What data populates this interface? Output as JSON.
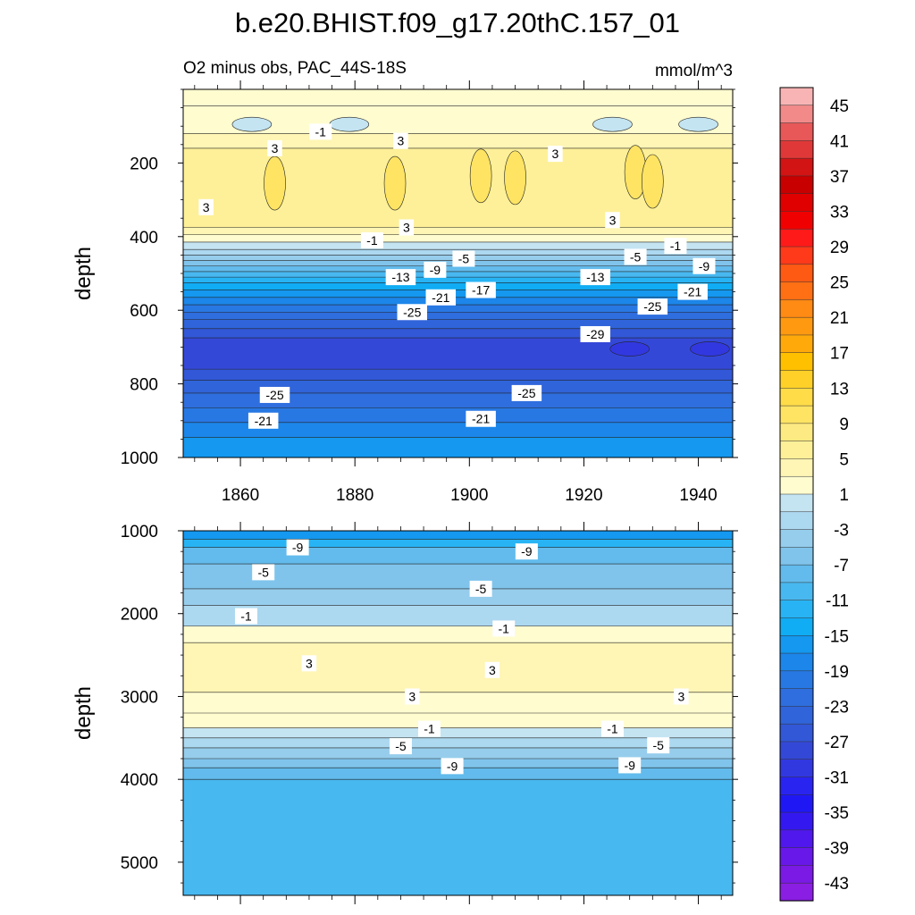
{
  "chart_data": {
    "type": "heatmap",
    "title": "b.e20.BHIST.f09_g17.20thC.157_01",
    "subtitle_left": "O2 minus obs, PAC_44S-18S",
    "subtitle_right": "mmol/m^3",
    "x_label": "",
    "x_ticks": [
      "1860",
      "1880",
      "1900",
      "1920",
      "1940"
    ],
    "x_tick_values": [
      1860,
      1880,
      1900,
      1920,
      1940
    ],
    "xlim": [
      1850,
      1946
    ],
    "panels": [
      {
        "name": "upper",
        "ylabel": "depth",
        "ylim": [
          0,
          1000
        ],
        "y_ticks": [
          "200",
          "400",
          "600",
          "800",
          "1000"
        ],
        "y_tick_values": [
          200,
          400,
          600,
          800,
          1000
        ],
        "bands": [
          {
            "top": 0,
            "bottom": 45,
            "value": 1
          },
          {
            "top": 45,
            "bottom": 120,
            "value": 1
          },
          {
            "top": 120,
            "bottom": 160,
            "value": 3
          },
          {
            "top": 160,
            "bottom": 375,
            "value": 5
          },
          {
            "top": 375,
            "bottom": 395,
            "value": 3
          },
          {
            "top": 395,
            "bottom": 415,
            "value": 1
          },
          {
            "top": 415,
            "bottom": 435,
            "value": -1
          },
          {
            "top": 435,
            "bottom": 450,
            "value": -3
          },
          {
            "top": 450,
            "bottom": 465,
            "value": -5
          },
          {
            "top": 465,
            "bottom": 480,
            "value": -7
          },
          {
            "top": 480,
            "bottom": 495,
            "value": -9
          },
          {
            "top": 495,
            "bottom": 510,
            "value": -11
          },
          {
            "top": 510,
            "bottom": 525,
            "value": -13
          },
          {
            "top": 525,
            "bottom": 545,
            "value": -15
          },
          {
            "top": 545,
            "bottom": 565,
            "value": -17
          },
          {
            "top": 565,
            "bottom": 585,
            "value": -19
          },
          {
            "top": 585,
            "bottom": 605,
            "value": -21
          },
          {
            "top": 605,
            "bottom": 625,
            "value": -23
          },
          {
            "top": 625,
            "bottom": 650,
            "value": -25
          },
          {
            "top": 650,
            "bottom": 675,
            "value": -27
          },
          {
            "top": 675,
            "bottom": 760,
            "value": -29
          },
          {
            "top": 760,
            "bottom": 790,
            "value": -27
          },
          {
            "top": 790,
            "bottom": 825,
            "value": -25
          },
          {
            "top": 825,
            "bottom": 865,
            "value": -23
          },
          {
            "top": 865,
            "bottom": 905,
            "value": -21
          },
          {
            "top": 905,
            "bottom": 945,
            "value": -19
          },
          {
            "top": 945,
            "bottom": 1000,
            "value": -17
          }
        ],
        "blobs": [
          {
            "year": 1862,
            "depth": 95,
            "value": -1
          },
          {
            "year": 1879,
            "depth": 95,
            "value": -1
          },
          {
            "year": 1925,
            "depth": 95,
            "value": -1
          },
          {
            "year": 1940,
            "depth": 95,
            "value": -1
          },
          {
            "year": 1866,
            "depth": 255,
            "value": 9
          },
          {
            "year": 1887,
            "depth": 255,
            "value": 9
          },
          {
            "year": 1902,
            "depth": 235,
            "value": 9
          },
          {
            "year": 1908,
            "depth": 240,
            "value": 9
          },
          {
            "year": 1929,
            "depth": 225,
            "value": 9
          },
          {
            "year": 1932,
            "depth": 250,
            "value": 9
          },
          {
            "year": 1928,
            "depth": 705,
            "value": -31
          },
          {
            "year": 1942,
            "depth": 705,
            "value": -31
          }
        ],
        "contour_labels": [
          {
            "text": "-1",
            "year": 1874,
            "depth": 115
          },
          {
            "text": "3",
            "year": 1888,
            "depth": 140
          },
          {
            "text": "3",
            "year": 1866,
            "depth": 160
          },
          {
            "text": "3",
            "year": 1915,
            "depth": 175
          },
          {
            "text": "3",
            "year": 1854,
            "depth": 320
          },
          {
            "text": "3",
            "year": 1889,
            "depth": 375
          },
          {
            "text": "3",
            "year": 1925,
            "depth": 355
          },
          {
            "text": "-1",
            "year": 1883,
            "depth": 410
          },
          {
            "text": "-1",
            "year": 1936,
            "depth": 425
          },
          {
            "text": "-5",
            "year": 1899,
            "depth": 460
          },
          {
            "text": "-5",
            "year": 1929,
            "depth": 455
          },
          {
            "text": "-9",
            "year": 1894,
            "depth": 490
          },
          {
            "text": "-9",
            "year": 1941,
            "depth": 480
          },
          {
            "text": "-13",
            "year": 1888,
            "depth": 510
          },
          {
            "text": "-13",
            "year": 1922,
            "depth": 510
          },
          {
            "text": "-17",
            "year": 1902,
            "depth": 545
          },
          {
            "text": "-21",
            "year": 1895,
            "depth": 565
          },
          {
            "text": "-21",
            "year": 1939,
            "depth": 550
          },
          {
            "text": "-25",
            "year": 1890,
            "depth": 605
          },
          {
            "text": "-25",
            "year": 1932,
            "depth": 590
          },
          {
            "text": "-29",
            "year": 1922,
            "depth": 665
          },
          {
            "text": "-25",
            "year": 1866,
            "depth": 830
          },
          {
            "text": "-25",
            "year": 1910,
            "depth": 825
          },
          {
            "text": "-21",
            "year": 1864,
            "depth": 900
          },
          {
            "text": "-21",
            "year": 1902,
            "depth": 895
          }
        ]
      },
      {
        "name": "lower",
        "ylabel": "depth",
        "ylim": [
          1000,
          5400
        ],
        "y_ticks": [
          "1000",
          "2000",
          "3000",
          "4000",
          "5000"
        ],
        "y_tick_values": [
          1000,
          2000,
          3000,
          4000,
          5000
        ],
        "bands": [
          {
            "top": 1000,
            "bottom": 1100,
            "value": -17
          },
          {
            "top": 1100,
            "bottom": 1200,
            "value": -13
          },
          {
            "top": 1200,
            "bottom": 1400,
            "value": -9
          },
          {
            "top": 1400,
            "bottom": 1700,
            "value": -7
          },
          {
            "top": 1700,
            "bottom": 1900,
            "value": -5
          },
          {
            "top": 1900,
            "bottom": 2150,
            "value": -3
          },
          {
            "top": 2150,
            "bottom": 2350,
            "value": 1
          },
          {
            "top": 2350,
            "bottom": 2950,
            "value": 3
          },
          {
            "top": 2950,
            "bottom": 3200,
            "value": 1
          },
          {
            "top": 3200,
            "bottom": 3380,
            "value": 1
          },
          {
            "top": 3380,
            "bottom": 3500,
            "value": -1
          },
          {
            "top": 3500,
            "bottom": 3620,
            "value": -3
          },
          {
            "top": 3620,
            "bottom": 3750,
            "value": -5
          },
          {
            "top": 3750,
            "bottom": 3860,
            "value": -7
          },
          {
            "top": 3860,
            "bottom": 4000,
            "value": -9
          },
          {
            "top": 4000,
            "bottom": 5400,
            "value": -11
          }
        ],
        "blobs": [],
        "contour_labels": [
          {
            "text": "-9",
            "year": 1870,
            "depth": 1200
          },
          {
            "text": "-9",
            "year": 1910,
            "depth": 1250
          },
          {
            "text": "-5",
            "year": 1864,
            "depth": 1500
          },
          {
            "text": "-5",
            "year": 1902,
            "depth": 1700
          },
          {
            "text": "-1",
            "year": 1861,
            "depth": 2030
          },
          {
            "text": "-1",
            "year": 1906,
            "depth": 2180
          },
          {
            "text": "3",
            "year": 1872,
            "depth": 2600
          },
          {
            "text": "3",
            "year": 1904,
            "depth": 2680
          },
          {
            "text": "3",
            "year": 1890,
            "depth": 3000
          },
          {
            "text": "3",
            "year": 1937,
            "depth": 3000
          },
          {
            "text": "-1",
            "year": 1893,
            "depth": 3390
          },
          {
            "text": "-1",
            "year": 1925,
            "depth": 3390
          },
          {
            "text": "-5",
            "year": 1888,
            "depth": 3600
          },
          {
            "text": "-5",
            "year": 1933,
            "depth": 3590
          },
          {
            "text": "-9",
            "year": 1897,
            "depth": 3840
          },
          {
            "text": "-9",
            "year": 1928,
            "depth": 3830
          }
        ]
      }
    ],
    "colorbar": {
      "labels": [
        "45",
        "41",
        "37",
        "33",
        "29",
        "25",
        "21",
        "17",
        "13",
        "9",
        "5",
        "1",
        "-3",
        "-7",
        "-11",
        "-15",
        "-19",
        "-23",
        "-27",
        "-31",
        "-35",
        "-39",
        "-43"
      ],
      "levels": [
        47,
        45,
        43,
        41,
        39,
        37,
        35,
        33,
        31,
        29,
        27,
        25,
        23,
        21,
        19,
        17,
        15,
        13,
        11,
        9,
        7,
        5,
        3,
        1,
        -1,
        -3,
        -5,
        -7,
        -9,
        -11,
        -13,
        -15,
        -17,
        -19,
        -21,
        -23,
        -25,
        -27,
        -29,
        -31,
        -33,
        -35,
        -37,
        -39,
        -41,
        -43,
        -45
      ],
      "colors": [
        "#f8b4b4",
        "#f28a8a",
        "#e85858",
        "#e03838",
        "#d21414",
        "#c80000",
        "#e00000",
        "#f00000",
        "#ff1a1a",
        "#ff3a1a",
        "#ff5a14",
        "#ff7014",
        "#ff8a14",
        "#ff9a10",
        "#ffaa0a",
        "#ffc000",
        "#ffd028",
        "#ffdc48",
        "#ffe464",
        "#fdea82",
        "#fdf098",
        "#fff5b4",
        "#fffcd0",
        "#c4e4f2",
        "#acd8f0",
        "#96cdec",
        "#80c4ec",
        "#62bbec",
        "#48b8f0",
        "#28b4f4",
        "#10acf4",
        "#1498f0",
        "#1c86ea",
        "#2878e4",
        "#2e6ede",
        "#3064da",
        "#3258d8",
        "#3448d8",
        "#3238e0",
        "#2a24f0",
        "#2018f4",
        "#3418f0",
        "#5018ec",
        "#6818e8",
        "#7a1ae4",
        "#8a1ee2"
      ]
    }
  }
}
